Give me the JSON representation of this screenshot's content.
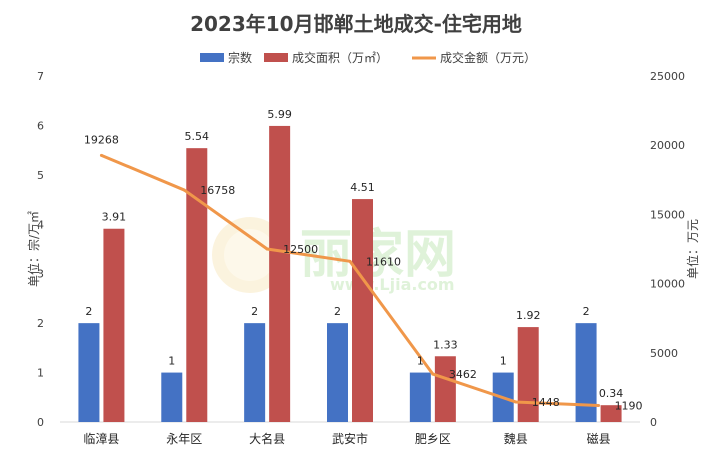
{
  "chart_data": {
    "type": "bar",
    "title": "2023年10月邯郸土地成交-住宅用地",
    "categories": [
      "临漳县",
      "永年区",
      "大名县",
      "武安市",
      "肥乡区",
      "魏县",
      "磁县"
    ],
    "series": [
      {
        "name": "宗数",
        "type": "bar",
        "axis": "left",
        "color": "#4472C4",
        "values": [
          2,
          1,
          2,
          2,
          1,
          1,
          2
        ],
        "labels": [
          "2",
          "1",
          "2",
          "2",
          "1",
          "1",
          "2"
        ]
      },
      {
        "name": "成交面积（万㎡）",
        "type": "bar",
        "axis": "left",
        "color": "#C0504D",
        "values": [
          3.91,
          5.54,
          5.99,
          4.51,
          1.33,
          1.92,
          0.34
        ],
        "labels": [
          "3.91",
          "5.54",
          "5.99",
          "4.51",
          "1.33",
          "1.92",
          "0.34"
        ]
      },
      {
        "name": "成交金额（万元）",
        "type": "line",
        "axis": "right",
        "color": "#F0974A",
        "values": [
          19268,
          16758,
          12500,
          11610,
          3462,
          1448,
          1190
        ],
        "labels": [
          "19268",
          "16758",
          "12500",
          "11610",
          "3462",
          "1448",
          "1190"
        ]
      }
    ],
    "yAxisLeft": {
      "label": "单位：宗/万㎡",
      "min": 0,
      "max": 7,
      "ticks": [
        "0",
        "1",
        "2",
        "3",
        "4",
        "5",
        "6",
        "7"
      ]
    },
    "yAxisRight": {
      "label": "单位：万元",
      "min": 0,
      "max": 25000,
      "ticks": [
        "0",
        "5000",
        "10000",
        "15000",
        "20000",
        "25000"
      ]
    },
    "legend": "top",
    "grid": false,
    "watermark": "丽家网 www.Ljia.com"
  }
}
